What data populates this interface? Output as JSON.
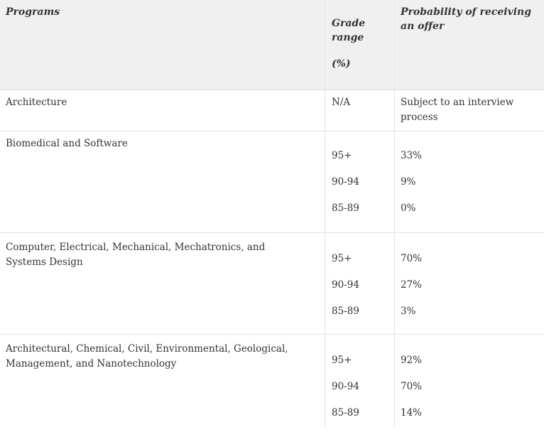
{
  "header": {
    "programs": "Programs",
    "grade_range": "Grade range",
    "grade_unit": "(%)",
    "probability": "Probability of receiving an offer"
  },
  "rows": [
    {
      "program": "Architecture",
      "grade": "N/A",
      "probability": "Subject to an interview process"
    },
    {
      "program": "Biomedical and Software",
      "grades": [
        "95+",
        "90-94",
        "85-89"
      ],
      "probabilities": [
        "33%",
        "9%",
        "0%"
      ]
    },
    {
      "program": "Computer, Electrical, Mechanical, Mechatronics, and Systems Design",
      "grades": [
        "95+",
        "90-94",
        "85-89"
      ],
      "probabilities": [
        "70%",
        "27%",
        "3%"
      ]
    },
    {
      "program": "Architectural, Chemical, Civil, Environmental, Geological, Management, and Nanotechnology",
      "grades": [
        "95+",
        "90-94",
        "85-89"
      ],
      "probabilities": [
        "92%",
        "70%",
        "14%"
      ]
    }
  ]
}
